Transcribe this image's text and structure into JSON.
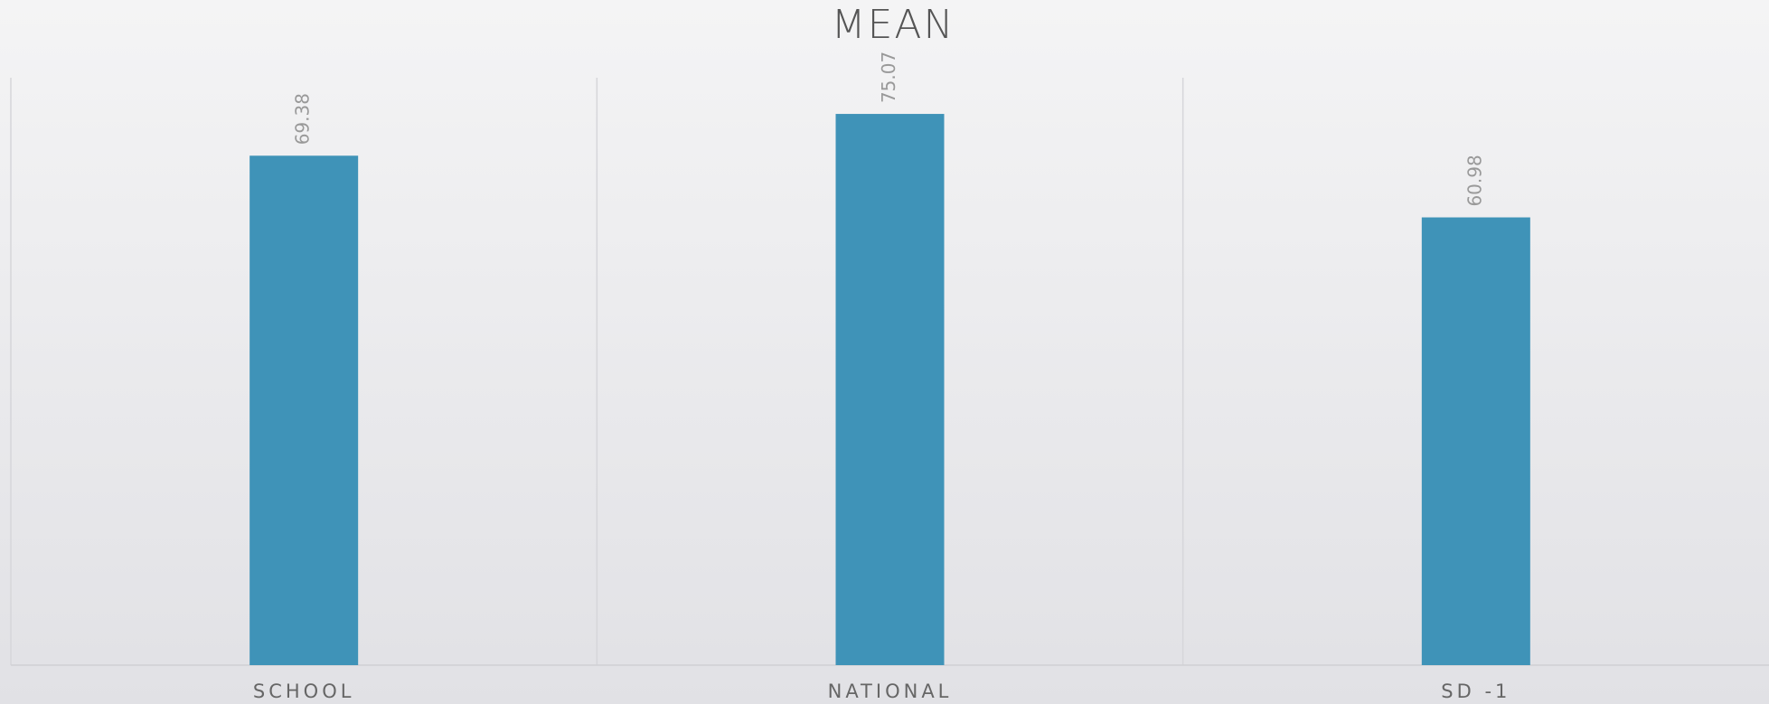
{
  "chart_data": {
    "type": "bar",
    "title": "MEAN",
    "categories": [
      "SCHOOL",
      "NATIONAL",
      "SD -1"
    ],
    "values": [
      69.38,
      75.07,
      60.98
    ],
    "color": "#3f93b8",
    "ylim": [
      0,
      80
    ]
  }
}
